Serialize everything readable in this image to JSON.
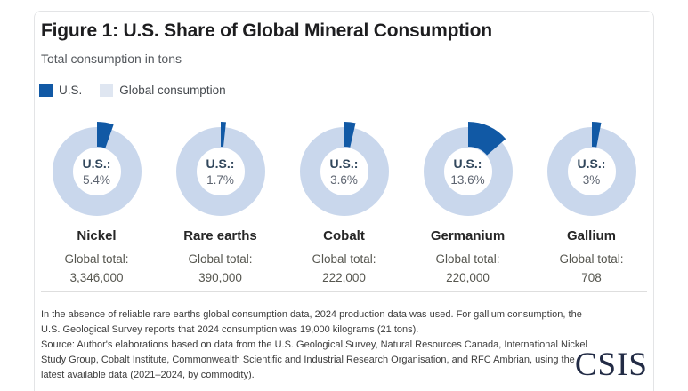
{
  "card": {
    "title": "Figure 1: U.S. Share of Global Mineral Consumption",
    "subtitle": "Total consumption in tons",
    "legend": [
      {
        "label": "U.S.",
        "color": "#1159a5"
      },
      {
        "label": "Global consumption",
        "color": "#dfe6f1"
      }
    ],
    "center_label_prefix": "U.S.:",
    "global_total_label": "Global total:",
    "footnote": "In the absence of reliable rare earths global consumption data, 2024 production data was used. For gallium consumption, the U.S. Geological Survey reports that 2024 consumption was 19,000 kilograms (21 tons).",
    "source": "Source: Author's elaborations based on data from the U.S. Geological Survey, Natural Resources Canada, International Nickel Study Group, Cobalt Institute, Commonwealth Scientific and Industrial Research Organisation, and RFC Ambrian, using the latest available data (2021–2024, by commodity).",
    "logo": "CSIS"
  },
  "chart_data": {
    "type": "pie",
    "subtype": "donut-small-multiples",
    "title": "Figure 1: U.S. Share of Global Mineral Consumption",
    "units": "tons",
    "legend_position": "top-left",
    "colors": {
      "us": "#1159a5",
      "global_ring": "#c9d7ec"
    },
    "series": [
      {
        "name": "Nickel",
        "us_share_pct": 5.4,
        "us_share_label": "5.4%",
        "global_total": "3,346,000"
      },
      {
        "name": "Rare earths",
        "us_share_pct": 1.7,
        "us_share_label": "1.7%",
        "global_total": "390,000"
      },
      {
        "name": "Cobalt",
        "us_share_pct": 3.6,
        "us_share_label": "3.6%",
        "global_total": "222,000"
      },
      {
        "name": "Germanium",
        "us_share_pct": 13.6,
        "us_share_label": "13.6%",
        "global_total": "220,000"
      },
      {
        "name": "Gallium",
        "us_share_pct": 3,
        "us_share_label": "3%",
        "global_total": "708"
      }
    ]
  }
}
